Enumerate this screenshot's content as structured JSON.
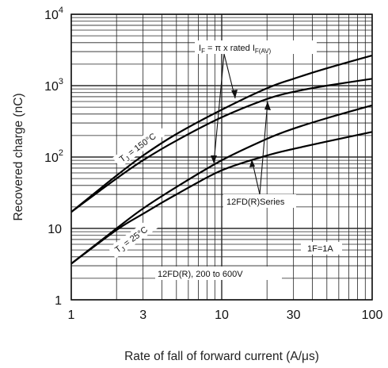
{
  "chart_data": {
    "type": "line",
    "title": "",
    "xlabel": "Rate of fall of forward current (A/μs)",
    "ylabel": "Recovered charge (nC)",
    "xscale": "log",
    "yscale": "log",
    "xlim": [
      1,
      100
    ],
    "ylim": [
      1,
      10000
    ],
    "grid": true,
    "x_ticks": [
      {
        "value": 1,
        "label": "1"
      },
      {
        "value": 3,
        "label": "3"
      },
      {
        "value": 10,
        "label": "10"
      },
      {
        "value": 30,
        "label": "30"
      },
      {
        "value": 100,
        "label": "100"
      }
    ],
    "y_ticks": [
      {
        "value": 1,
        "base": "1",
        "exp": ""
      },
      {
        "value": 10,
        "base": "10",
        "exp": ""
      },
      {
        "value": 100,
        "base": "10",
        "exp": "2"
      },
      {
        "value": 1000,
        "base": "10",
        "exp": "3"
      },
      {
        "value": 10000,
        "base": "10",
        "exp": "4"
      }
    ],
    "series": [
      {
        "x": [
          1,
          2,
          3,
          5,
          10,
          20,
          30,
          50,
          100
        ],
        "values": [
          17,
          55,
          105,
          210,
          460,
          920,
          1250,
          1750,
          2650
        ]
      },
      {
        "x": [
          1,
          2,
          3,
          5,
          10,
          20,
          30,
          50,
          100
        ],
        "values": [
          17,
          50,
          90,
          170,
          360,
          650,
          820,
          1000,
          1250
        ]
      },
      {
        "x": [
          1,
          2,
          3,
          5,
          10,
          20,
          30,
          50,
          100
        ],
        "values": [
          3.2,
          10,
          19,
          38,
          90,
          180,
          250,
          350,
          530
        ]
      },
      {
        "x": [
          1,
          2,
          3,
          5,
          10,
          20,
          30,
          50,
          100
        ],
        "values": [
          3.2,
          9.5,
          16,
          30,
          65,
          105,
          130,
          165,
          225
        ]
      }
    ],
    "annotations": {
      "if_label": {
        "pre": "I",
        "sub1": "F",
        "mid": " = π x rated I",
        "sub2": "F(AV)"
      },
      "tj150": {
        "pre": "T",
        "sub": "J",
        "post": " = 150°C"
      },
      "tj25": {
        "pre": "T",
        "sub": "J",
        "post": " = 25°C"
      },
      "series_label": "12FD(R)Series",
      "if1": "1F=1A",
      "voltage": "12FD(R), 200 to 600V"
    }
  }
}
